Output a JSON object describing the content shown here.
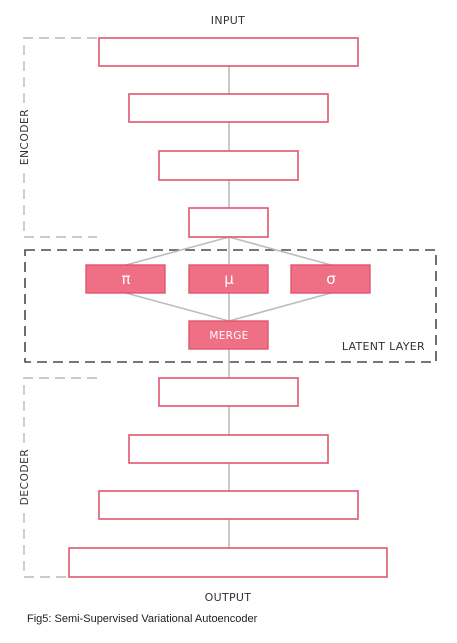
{
  "labels": {
    "input": "INPUT",
    "output": "OUTPUT",
    "encoder": "ENCODER",
    "decoder": "DECODER",
    "latent_layer": "LATENT LAYER",
    "merge": "MERGE"
  },
  "latent_params": [
    "π",
    "μ",
    "σ"
  ],
  "caption": "Fig5: Semi-Supervised Variational Autoencoder",
  "colors": {
    "node_stroke": "#e05670",
    "node_fill": "#ef6f84",
    "connector": "#bdbdbd",
    "encoder_decoder_frame": "#b8b8b8",
    "latent_frame": "#4a4a4a"
  }
}
